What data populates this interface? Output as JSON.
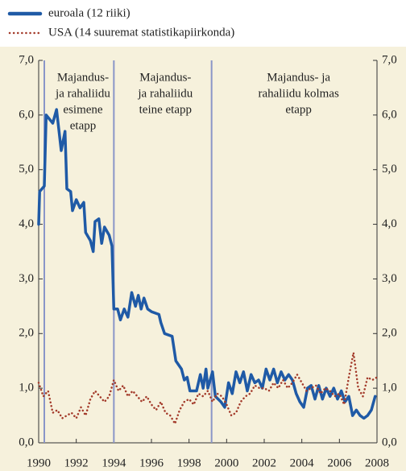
{
  "chart_data": {
    "type": "line",
    "legend": "top-left",
    "grid": false,
    "background": "#f6f1dc",
    "xlim": [
      1990,
      2008
    ],
    "xticks": [
      1990,
      1992,
      1994,
      1996,
      1998,
      2000,
      2002,
      2004,
      2006,
      2008
    ],
    "ylim": [
      0,
      7
    ],
    "yticks": [
      {
        "value": 0,
        "label": "0,0"
      },
      {
        "value": 1,
        "label": "1,0"
      },
      {
        "value": 2,
        "label": "2,0"
      },
      {
        "value": 3,
        "label": "3,0"
      },
      {
        "value": 4,
        "label": "4,0"
      },
      {
        "value": 5,
        "label": "5,0"
      },
      {
        "value": 6,
        "label": "6,0"
      },
      {
        "value": 7,
        "label": "7,0"
      }
    ],
    "y2lim": [
      0,
      7
    ],
    "y2ticks": [
      {
        "value": 0,
        "label": "0,0"
      },
      {
        "value": 1,
        "label": "1,0"
      },
      {
        "value": 2,
        "label": "2,0"
      },
      {
        "value": 3,
        "label": "3,0"
      },
      {
        "value": 4,
        "label": "4,0"
      },
      {
        "value": 5,
        "label": "5,0"
      },
      {
        "value": 6,
        "label": "6,0"
      },
      {
        "value": 7,
        "label": "7,0"
      }
    ],
    "annotations": [
      {
        "x": 1990.3,
        "lines": [
          "Majandus-",
          "ja rahaliidu",
          "esimene",
          "etapp"
        ]
      },
      {
        "x": 1994,
        "lines": [
          "Majandus-",
          "ja rahaliidu",
          "teine etapp"
        ]
      },
      {
        "x": 1999.2,
        "lines": [
          "Majandus- ja",
          "rahaliidu kolmas",
          "etapp"
        ]
      }
    ],
    "series": [
      {
        "name": "euroala (12 riiki)",
        "color": "#1f5aa6",
        "style": "solid",
        "x": [
          1990.0,
          1990.05,
          1990.3,
          1990.4,
          1990.75,
          1990.95,
          1991.2,
          1991.4,
          1991.5,
          1991.7,
          1991.8,
          1992.0,
          1992.2,
          1992.4,
          1992.5,
          1992.75,
          1992.9,
          1993.0,
          1993.2,
          1993.35,
          1993.5,
          1993.75,
          1993.9,
          1994.0,
          1994.2,
          1994.35,
          1994.55,
          1994.75,
          1994.95,
          1995.15,
          1995.3,
          1995.45,
          1995.6,
          1995.8,
          1996.0,
          1996.4,
          1996.5,
          1996.7,
          1997.1,
          1997.3,
          1997.6,
          1997.75,
          1997.9,
          1998.05,
          1998.4,
          1998.6,
          1998.75,
          1998.9,
          1999.0,
          1999.25,
          1999.4,
          1999.7,
          1999.9,
          2000.1,
          2000.3,
          2000.5,
          2000.7,
          2000.9,
          2001.1,
          2001.3,
          2001.5,
          2001.7,
          2001.9,
          2002.1,
          2002.3,
          2002.5,
          2002.7,
          2002.9,
          2003.1,
          2003.3,
          2003.5,
          2003.7,
          2003.9,
          2004.1,
          2004.3,
          2004.5,
          2004.7,
          2004.9,
          2005.1,
          2005.3,
          2005.5,
          2005.7,
          2005.9,
          2006.1,
          2006.3,
          2006.5,
          2006.7,
          2006.9,
          2007.1,
          2007.3,
          2007.5,
          2007.7,
          2007.9
        ],
        "values": [
          4.0,
          4.6,
          4.7,
          6.0,
          5.85,
          6.1,
          5.35,
          5.7,
          4.65,
          4.6,
          4.25,
          4.45,
          4.3,
          4.4,
          3.85,
          3.7,
          3.5,
          4.05,
          4.1,
          3.65,
          3.95,
          3.8,
          3.6,
          2.45,
          2.45,
          2.25,
          2.45,
          2.3,
          2.75,
          2.5,
          2.7,
          2.45,
          2.65,
          2.45,
          2.4,
          2.35,
          2.2,
          2.0,
          1.95,
          1.5,
          1.35,
          1.15,
          1.2,
          0.95,
          0.95,
          1.25,
          1.0,
          1.35,
          1.0,
          1.3,
          0.85,
          0.75,
          0.65,
          1.1,
          0.9,
          1.3,
          1.1,
          1.3,
          0.95,
          1.25,
          1.1,
          1.15,
          1.0,
          1.35,
          1.15,
          1.35,
          1.1,
          1.3,
          1.15,
          1.25,
          1.15,
          0.9,
          0.75,
          0.65,
          1.0,
          1.05,
          0.8,
          1.05,
          0.8,
          1.0,
          0.85,
          1.0,
          0.8,
          0.95,
          0.75,
          0.85,
          0.5,
          0.6,
          0.5,
          0.45,
          0.5,
          0.6,
          0.85
        ]
      },
      {
        "name": "USA (14 suuremat statistikapiirkonda)",
        "color": "#a33a2a",
        "style": "dotted",
        "x": [
          1990,
          1990.25,
          1990.5,
          1990.75,
          1991,
          1991.25,
          1991.5,
          1991.75,
          1992,
          1992.25,
          1992.5,
          1992.75,
          1993,
          1993.25,
          1993.5,
          1993.75,
          1994,
          1994.25,
          1994.5,
          1994.75,
          1995,
          1995.25,
          1995.5,
          1995.75,
          1996,
          1996.25,
          1996.5,
          1996.75,
          1997,
          1997.25,
          1997.5,
          1997.75,
          1998,
          1998.25,
          1998.5,
          1998.75,
          1999,
          1999.25,
          1999.5,
          1999.75,
          2000,
          2000.25,
          2000.5,
          2000.75,
          2001,
          2001.25,
          2001.5,
          2001.75,
          2002,
          2002.25,
          2002.5,
          2002.75,
          2003,
          2003.25,
          2003.5,
          2003.75,
          2004,
          2004.25,
          2004.5,
          2004.75,
          2005,
          2005.25,
          2005.5,
          2005.75,
          2006,
          2006.25,
          2006.5,
          2006.75,
          2007,
          2007.25,
          2007.5,
          2007.75,
          2008
        ],
        "values": [
          1.1,
          0.85,
          0.95,
          0.55,
          0.6,
          0.45,
          0.5,
          0.55,
          0.45,
          0.65,
          0.5,
          0.8,
          0.95,
          0.85,
          0.75,
          0.85,
          1.15,
          0.95,
          1.05,
          0.85,
          0.95,
          0.85,
          0.75,
          0.85,
          0.7,
          0.6,
          0.75,
          0.55,
          0.5,
          0.35,
          0.6,
          0.75,
          0.8,
          0.7,
          0.9,
          0.85,
          0.95,
          0.75,
          0.9,
          0.85,
          0.7,
          0.5,
          0.55,
          0.75,
          0.85,
          0.9,
          1.05,
          1.0,
          1.0,
          0.95,
          1.1,
          1.0,
          1.15,
          1.0,
          1.1,
          1.25,
          1.1,
          0.95,
          1.0,
          1.05,
          0.9,
          1.0,
          0.95,
          0.85,
          0.9,
          0.7,
          1.2,
          1.65,
          1.0,
          0.85,
          1.2,
          1.15,
          1.2
        ]
      }
    ]
  }
}
